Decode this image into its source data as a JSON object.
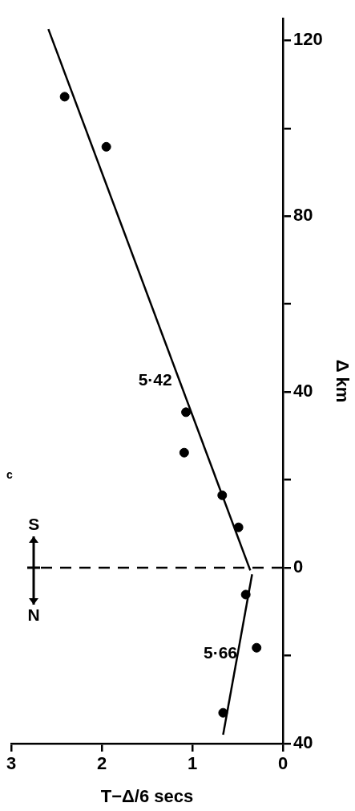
{
  "chart_data": {
    "type": "scatter",
    "xlabel": "T−Δ/6 secs",
    "ylabel": "Δ km",
    "xlim": [
      3,
      0
    ],
    "xticks": [
      3,
      2,
      1,
      0
    ],
    "ylim": [
      -40,
      125
    ],
    "yticks": [
      {
        "value": -40,
        "label": "40"
      },
      {
        "value": -20,
        "label": null
      },
      0,
      {
        "value": 20,
        "label": null
      },
      40,
      {
        "value": 60,
        "label": null
      },
      80,
      {
        "value": 100,
        "label": null
      },
      120
    ],
    "series": [
      {
        "type": "scatter",
        "marker": "circle",
        "color": "#000000",
        "x": [
          2.41,
          1.95,
          1.07,
          1.09,
          0.67,
          0.49,
          0.41,
          0.29,
          0.66
        ],
        "values": [
          107.2,
          95.8,
          35.4,
          26.2,
          16.5,
          9.2,
          -6.1,
          -18.2,
          -33.0
        ]
      },
      {
        "type": "line",
        "marker": "none",
        "color": "#000000",
        "x": [
          0.36,
          2.59
        ],
        "values": [
          -0.6,
          122.6
        ]
      },
      {
        "type": "line",
        "marker": "none",
        "color": "#000000",
        "x": [
          0.34,
          0.66
        ],
        "values": [
          -1.5,
          -38
        ]
      }
    ],
    "ref_lines": [
      {
        "axis": "y",
        "value": 0,
        "line_style": "dashed",
        "color": "#000000"
      }
    ],
    "annotations": [
      "c",
      "N",
      "S",
      "5·42",
      "5·66"
    ]
  }
}
